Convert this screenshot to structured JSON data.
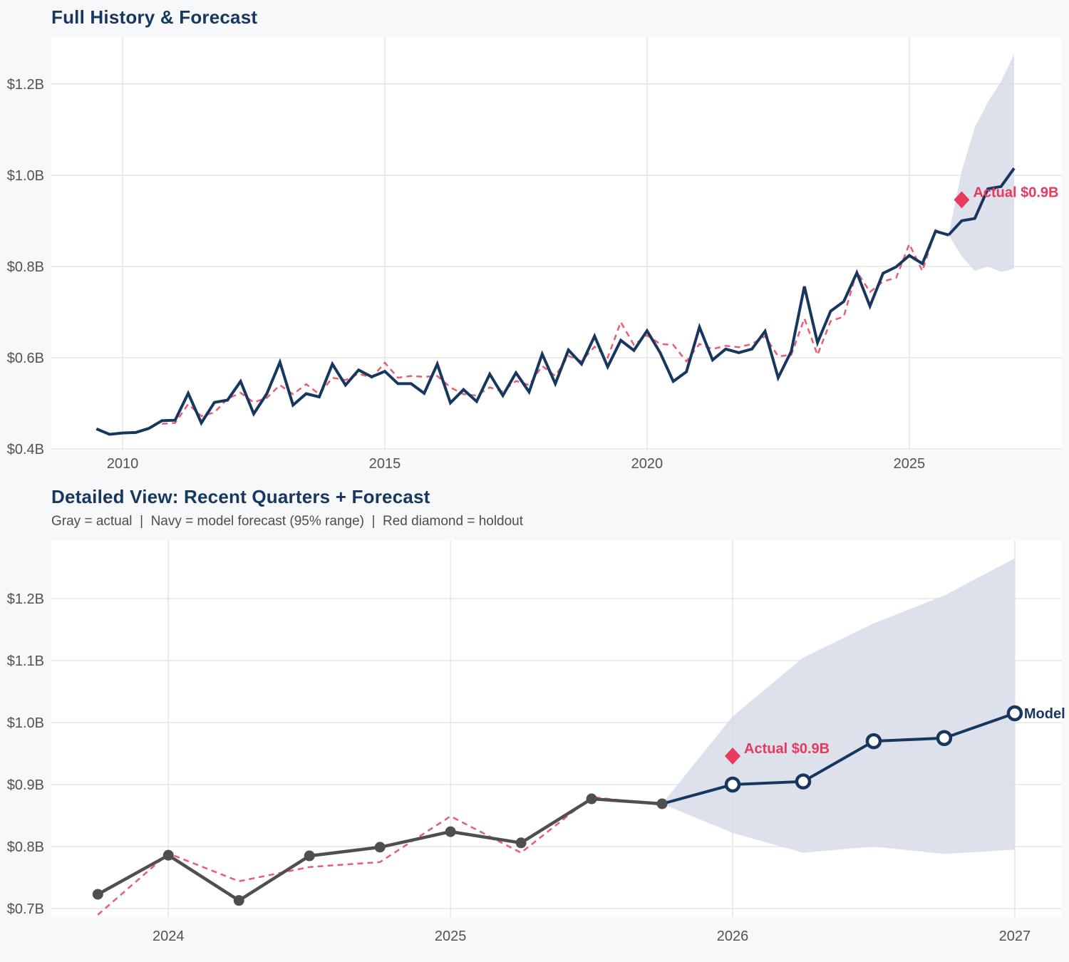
{
  "colors": {
    "navy": "#17375e",
    "pink_dashed": "#e85d75",
    "crimson": "#e8395f",
    "gray_line": "#4f4f4f",
    "band_fill": "#d4dae6",
    "grid": "#e5e5e5",
    "axis_text": "#525252",
    "plot_bg": "#ffffff",
    "page_bg": "#f7f8fa",
    "title_navy": "#17375e"
  },
  "chart_data": [
    {
      "type": "line",
      "title": "Full History & Forecast",
      "freq": "quarterly",
      "xlim": [
        2008.64,
        2027.91
      ],
      "ylim": [
        0.4,
        1.298
      ],
      "x_ticks": [
        {
          "value": 2010,
          "label": "2010"
        },
        {
          "value": 2015,
          "label": "2015"
        },
        {
          "value": 2020,
          "label": "2020"
        },
        {
          "value": 2025,
          "label": "2025"
        }
      ],
      "y_ticks": [
        {
          "value": 0.4,
          "label": "$0.4B"
        },
        {
          "value": 0.6,
          "label": "$0.6B"
        },
        {
          "value": 0.8,
          "label": "$0.8B"
        },
        {
          "value": 1.0,
          "label": "$1.0B"
        },
        {
          "value": 1.2,
          "label": "$1.2B"
        }
      ],
      "series": {
        "actual": {
          "name": "actual-history",
          "start": 2009.5,
          "start_label": "2009-Q3",
          "step": 0.25,
          "values": [
            0.444,
            0.432,
            0.435,
            0.436,
            0.445,
            0.462,
            0.463,
            0.522,
            0.457,
            0.502,
            0.507,
            0.548,
            0.477,
            0.521,
            0.59,
            0.496,
            0.521,
            0.514,
            0.586,
            0.54,
            0.573,
            0.558,
            0.57,
            0.543,
            0.543,
            0.522,
            0.586,
            0.501,
            0.53,
            0.504,
            0.564,
            0.517,
            0.567,
            0.525,
            0.608,
            0.543,
            0.617,
            0.586,
            0.647,
            0.58,
            0.638,
            0.616,
            0.659,
            0.611,
            0.548,
            0.569,
            0.667,
            0.595,
            0.619,
            0.611,
            0.619,
            0.658,
            0.556,
            0.614,
            0.756,
            0.633,
            0.702,
            0.723,
            0.786,
            0.713,
            0.785,
            0.799,
            0.824,
            0.806,
            0.877,
            0.869
          ]
        },
        "fitted": {
          "name": "model-fit",
          "start": 2010.75,
          "start_label": "2010-Q4",
          "step": 0.25,
          "values": [
            0.455,
            0.457,
            0.498,
            0.472,
            0.48,
            0.51,
            0.523,
            0.502,
            0.512,
            0.54,
            0.52,
            0.542,
            0.52,
            0.556,
            0.551,
            0.565,
            0.556,
            0.589,
            0.556,
            0.56,
            0.558,
            0.56,
            0.535,
            0.52,
            0.517,
            0.535,
            0.526,
            0.549,
            0.54,
            0.582,
            0.56,
            0.604,
            0.592,
            0.624,
            0.6,
            0.678,
            0.628,
            0.649,
            0.63,
            0.628,
            0.592,
            0.63,
            0.619,
            0.626,
            0.623,
            0.63,
            0.647,
            0.603,
            0.606,
            0.686,
            0.606,
            0.68,
            0.69,
            0.789,
            0.744,
            0.767,
            0.775,
            0.849,
            0.79,
            0.88,
            0.867
          ]
        },
        "forecast": {
          "name": "model-forecast",
          "start": 2025.75,
          "start_label": "2025-Q4",
          "step": 0.25,
          "values": [
            0.869,
            0.9,
            0.905,
            0.97,
            0.975,
            1.015
          ]
        },
        "band": {
          "name": "forecast-95pct-range",
          "start": 2025.75,
          "step": 0.25,
          "lower": [
            0.869,
            0.822,
            0.79,
            0.8,
            0.788,
            0.795
          ],
          "upper": [
            0.869,
            1.01,
            1.105,
            1.16,
            1.205,
            1.265
          ]
        }
      },
      "holdout": {
        "x": 2026.0,
        "value": 0.946,
        "label": "Actual $0.9B"
      }
    },
    {
      "type": "line",
      "title": "Detailed View: Recent Quarters + Forecast",
      "subtitle": "Gray = actual  |  Navy = model forecast (95% range)  |  Red diamond = holdout",
      "freq": "quarterly",
      "xlim": [
        2023.585,
        2027.167
      ],
      "ylim": [
        0.6885,
        1.292
      ],
      "x_ticks": [
        {
          "value": 2024,
          "label": "2024"
        },
        {
          "value": 2025,
          "label": "2025"
        },
        {
          "value": 2026,
          "label": "2026"
        },
        {
          "value": 2027,
          "label": "2027"
        }
      ],
      "y_ticks": [
        {
          "value": 0.7,
          "label": "$0.7B"
        },
        {
          "value": 0.8,
          "label": "$0.8B"
        },
        {
          "value": 0.9,
          "label": "$0.9B"
        },
        {
          "value": 1.0,
          "label": "$1.0B"
        },
        {
          "value": 1.1,
          "label": "$1.1B"
        },
        {
          "value": 1.2,
          "label": "$1.2B"
        }
      ],
      "series": {
        "actual": {
          "name": "actual-recent-quarters",
          "start": 2023.75,
          "start_label": "2023-Q4",
          "step": 0.25,
          "values": [
            0.723,
            0.786,
            0.713,
            0.785,
            0.799,
            0.824,
            0.806,
            0.877,
            0.869
          ]
        },
        "fitted": {
          "name": "model-fit",
          "start": 2023.75,
          "start_label": "2023-Q4",
          "step": 0.25,
          "values": [
            0.69,
            0.789,
            0.744,
            0.767,
            0.775,
            0.849,
            0.79,
            0.88,
            0.867
          ]
        },
        "forecast": {
          "name": "model-forecast",
          "start": 2025.75,
          "start_label": "2025-Q4",
          "step": 0.25,
          "values": [
            0.869,
            0.9,
            0.905,
            0.97,
            0.975,
            1.015
          ]
        },
        "band": {
          "name": "forecast-95pct-range",
          "start": 2025.75,
          "step": 0.25,
          "lower": [
            0.869,
            0.822,
            0.79,
            0.8,
            0.788,
            0.795
          ],
          "upper": [
            0.869,
            1.01,
            1.105,
            1.16,
            1.205,
            1.265
          ]
        }
      },
      "holdout": {
        "x": 2026.0,
        "value": 0.946,
        "label": "Actual $0.9B"
      },
      "model_label": "Model"
    }
  ]
}
